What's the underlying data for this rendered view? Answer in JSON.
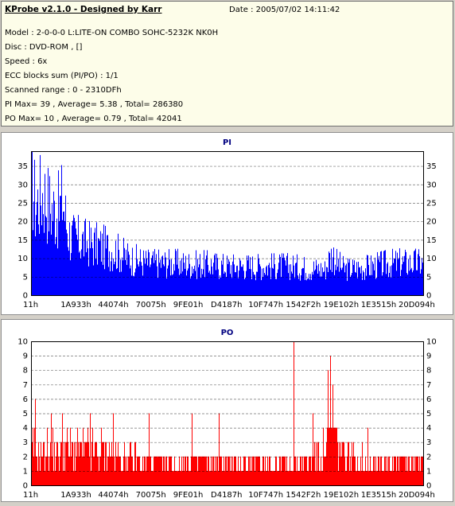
{
  "header": {
    "title": "KProbe v2.1.0 - Designed by Karr",
    "date": "Date : 2005/07/02 14:11:42",
    "lines": [
      "Model : 2-0-0-0 L:LITE-ON COMBO SOHC-5232K NK0H",
      "Disc : DVD-ROM ,  []",
      "Speed : 6x",
      "ECC blocks sum (PI/PO) : 1/1",
      "Scanned range : 0 - 2310DFh",
      "PI Max= 39 , Average= 5.38 , Total= 286380",
      "PO Max= 10 , Average= 0.79 , Total= 42041"
    ]
  },
  "colors": {
    "pi": "#0000ff",
    "po": "#ff0000",
    "title": "#000080",
    "grid": "#000000"
  },
  "chart_data": [
    {
      "type": "area",
      "title": "PI",
      "x_ticks": [
        "11h",
        "1A933h",
        "44074h",
        "70075h",
        "9FE01h",
        "D4187h",
        "10F747h",
        "1542F2h",
        "19E102h",
        "1E3515h",
        "20D094h"
      ],
      "y_ticks": [
        0,
        5,
        10,
        15,
        20,
        25,
        30,
        35
      ],
      "ylim": [
        0,
        39
      ],
      "grid": "horizontal dashed",
      "max": 39,
      "average": 5.38,
      "profile": [
        [
          0.0,
          39
        ],
        [
          0.01,
          28
        ],
        [
          0.03,
          32
        ],
        [
          0.05,
          27
        ],
        [
          0.07,
          26
        ],
        [
          0.08,
          30
        ],
        [
          0.09,
          22
        ],
        [
          0.1,
          18
        ],
        [
          0.12,
          17
        ],
        [
          0.15,
          16
        ],
        [
          0.18,
          15
        ],
        [
          0.21,
          14
        ],
        [
          0.24,
          12
        ],
        [
          0.26,
          11
        ],
        [
          0.3,
          10
        ],
        [
          0.35,
          10
        ],
        [
          0.4,
          9.5
        ],
        [
          0.45,
          9.5
        ],
        [
          0.5,
          9
        ],
        [
          0.55,
          9
        ],
        [
          0.6,
          9
        ],
        [
          0.65,
          9
        ],
        [
          0.7,
          8.5
        ],
        [
          0.75,
          8
        ],
        [
          0.76,
          11
        ],
        [
          0.77,
          13
        ],
        [
          0.78,
          10
        ],
        [
          0.8,
          8
        ],
        [
          0.85,
          8.5
        ],
        [
          0.9,
          9.5
        ],
        [
          0.94,
          10
        ],
        [
          0.97,
          10
        ],
        [
          1.0,
          10
        ]
      ]
    },
    {
      "type": "area",
      "title": "PO",
      "x_ticks": [
        "11h",
        "1A933h",
        "44074h",
        "70075h",
        "9FE01h",
        "D4187h",
        "10F747h",
        "1542F2h",
        "19E102h",
        "1E3515h",
        "20D094h"
      ],
      "y_ticks": [
        0,
        1,
        2,
        3,
        4,
        5,
        6,
        7,
        8,
        9,
        10
      ],
      "ylim": [
        0,
        10
      ],
      "grid": "horizontal dashed",
      "max": 10,
      "average": 0.79,
      "profile": [
        [
          0.0,
          3
        ],
        [
          0.05,
          3
        ],
        [
          0.1,
          3
        ],
        [
          0.15,
          3
        ],
        [
          0.2,
          3
        ],
        [
          0.22,
          2.5
        ],
        [
          0.3,
          2
        ],
        [
          0.4,
          2
        ],
        [
          0.5,
          2
        ],
        [
          0.6,
          2
        ],
        [
          0.65,
          2
        ],
        [
          0.7,
          2
        ],
        [
          0.75,
          3
        ],
        [
          0.76,
          4
        ],
        [
          0.77,
          5
        ],
        [
          0.78,
          3.5
        ],
        [
          0.8,
          2.5
        ],
        [
          0.85,
          2
        ],
        [
          0.9,
          2
        ],
        [
          0.95,
          2
        ],
        [
          1.0,
          2
        ]
      ],
      "spikes": [
        [
          0.67,
          10
        ],
        [
          0.764,
          9
        ],
        [
          0.758,
          8
        ],
        [
          0.77,
          7
        ],
        [
          0.01,
          6
        ],
        [
          0.05,
          5
        ],
        [
          0.08,
          5
        ],
        [
          0.15,
          5
        ],
        [
          0.21,
          5
        ],
        [
          0.3,
          5
        ],
        [
          0.41,
          5
        ],
        [
          0.48,
          5
        ],
        [
          0.72,
          5
        ],
        [
          0.86,
          4
        ]
      ]
    }
  ]
}
